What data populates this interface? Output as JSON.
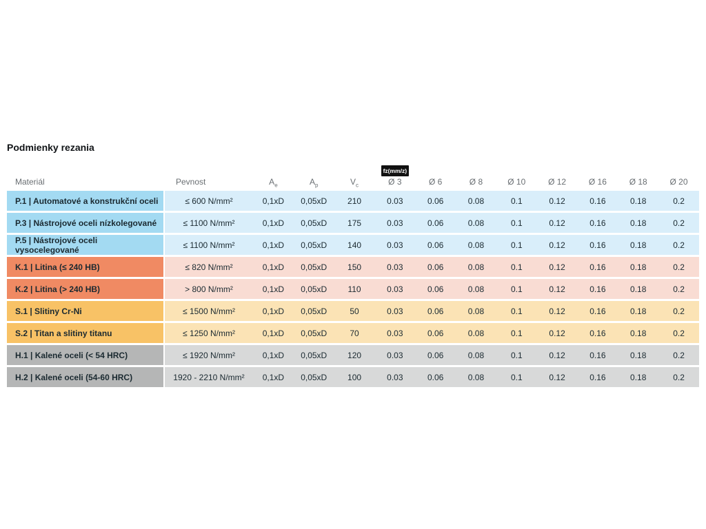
{
  "page": {
    "title": "Podmienky rezania"
  },
  "table": {
    "headers": {
      "material": "Materiál",
      "pevnost": "Pevnost",
      "ae": {
        "base": "A",
        "sub": "e"
      },
      "ap": {
        "base": "A",
        "sub": "p"
      },
      "vc": {
        "base": "V",
        "sub": "c"
      },
      "fz_badge": "fz(mm/z)",
      "diameters": [
        "Ø 3",
        "Ø 6",
        "Ø 8",
        "Ø 10",
        "Ø 12",
        "Ø 16",
        "Ø 18",
        "Ø 20"
      ]
    },
    "colors": {
      "P": {
        "label": "#a3daf2",
        "cells": "#d9eefa"
      },
      "K": {
        "label": "#f08a63",
        "cells": "#f9dcd3"
      },
      "S": {
        "label": "#f8c266",
        "cells": "#fbe3b5"
      },
      "H": {
        "label": "#b5b6b6",
        "cells": "#d8d9d9"
      }
    },
    "rows": [
      {
        "group": "P",
        "label": "P.1 | Automatové a konstrukční oceli",
        "pevnost": "≤ 600 N/mm²",
        "ae": "0,1xD",
        "ap": "0,05xD",
        "vc": "210",
        "fz": [
          "0.03",
          "0.06",
          "0.08",
          "0.1",
          "0.12",
          "0.16",
          "0.18",
          "0.2"
        ]
      },
      {
        "group": "P",
        "label": "P.3 | Nástrojové oceli nízkolegované",
        "pevnost": "≤ 1100 N/mm²",
        "ae": "0,1xD",
        "ap": "0,05xD",
        "vc": "175",
        "fz": [
          "0.03",
          "0.06",
          "0.08",
          "0.1",
          "0.12",
          "0.16",
          "0.18",
          "0.2"
        ]
      },
      {
        "group": "P",
        "label": "P.5 | Nástrojové oceli vysocelegované",
        "pevnost": "≤ 1100 N/mm²",
        "ae": "0,1xD",
        "ap": "0,05xD",
        "vc": "140",
        "fz": [
          "0.03",
          "0.06",
          "0.08",
          "0.1",
          "0.12",
          "0.16",
          "0.18",
          "0.2"
        ]
      },
      {
        "group": "K",
        "label": "K.1 | Litina (≤ 240 HB)",
        "pevnost": "≤ 820 N/mm²",
        "ae": "0,1xD",
        "ap": "0,05xD",
        "vc": "150",
        "fz": [
          "0.03",
          "0.06",
          "0.08",
          "0.1",
          "0.12",
          "0.16",
          "0.18",
          "0.2"
        ]
      },
      {
        "group": "K",
        "label": "K.2 | Litina (> 240 HB)",
        "pevnost": "> 800 N/mm²",
        "ae": "0,1xD",
        "ap": "0,05xD",
        "vc": "110",
        "fz": [
          "0.03",
          "0.06",
          "0.08",
          "0.1",
          "0.12",
          "0.16",
          "0.18",
          "0.2"
        ]
      },
      {
        "group": "S",
        "label": "S.1 | Slitiny Cr-Ni",
        "pevnost": "≤ 1500 N/mm²",
        "ae": "0,1xD",
        "ap": "0,05xD",
        "vc": "50",
        "fz": [
          "0.03",
          "0.06",
          "0.08",
          "0.1",
          "0.12",
          "0.16",
          "0.18",
          "0.2"
        ]
      },
      {
        "group": "S",
        "label": "S.2 | Titan a slitiny titanu",
        "pevnost": "≤ 1250 N/mm²",
        "ae": "0,1xD",
        "ap": "0,05xD",
        "vc": "70",
        "fz": [
          "0.03",
          "0.06",
          "0.08",
          "0.1",
          "0.12",
          "0.16",
          "0.18",
          "0.2"
        ]
      },
      {
        "group": "H",
        "label": "H.1 | Kalené oceli (< 54 HRC)",
        "pevnost": "≤ 1920 N/mm²",
        "ae": "0,1xD",
        "ap": "0,05xD",
        "vc": "120",
        "fz": [
          "0.03",
          "0.06",
          "0.08",
          "0.1",
          "0.12",
          "0.16",
          "0.18",
          "0.2"
        ]
      },
      {
        "group": "H",
        "label": "H.2 | Kalené oceli (54-60 HRC)",
        "pevnost": "1920 - 2210 N/mm²",
        "ae": "0,1xD",
        "ap": "0,05xD",
        "vc": "100",
        "fz": [
          "0.03",
          "0.06",
          "0.08",
          "0.1",
          "0.12",
          "0.16",
          "0.18",
          "0.2"
        ]
      }
    ]
  }
}
